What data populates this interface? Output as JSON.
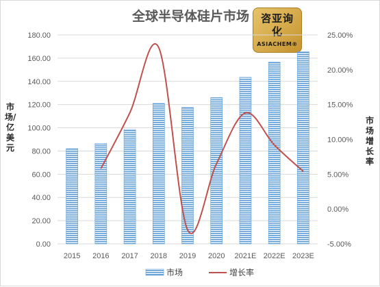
{
  "chart_data": {
    "type": "bar",
    "title": "全球半导体硅片市场",
    "categories": [
      "2015",
      "2016",
      "2017",
      "2018",
      "2019",
      "2020",
      "2021E",
      "2022E",
      "2023E"
    ],
    "series": [
      {
        "name": "市场",
        "type": "bar",
        "axis": "left",
        "color": "#5b9bd5",
        "values": [
          82.0,
          86.5,
          98.5,
          121.0,
          117.5,
          126.0,
          143.5,
          156.5,
          165.5
        ]
      },
      {
        "name": "增长率",
        "type": "line",
        "axis": "right",
        "color": "#c0504d",
        "values": [
          null,
          5.8,
          13.8,
          23.2,
          -3.0,
          6.5,
          13.8,
          9.2,
          5.4
        ]
      }
    ],
    "ylabel": "市场/亿美元",
    "y2label": "市场增长率",
    "ylim": [
      0,
      180
    ],
    "y2lim": [
      -5,
      25
    ],
    "yticks": [
      "0.00",
      "20.00",
      "40.00",
      "60.00",
      "80.00",
      "100.00",
      "120.00",
      "140.00",
      "160.00",
      "180.00"
    ],
    "y2ticks": [
      "-5.00%",
      "0.00%",
      "5.00%",
      "10.00%",
      "15.00%",
      "20.00%",
      "25.00%"
    ],
    "legend": "bottom",
    "grid": true
  },
  "logo": {
    "text_cn": "咨亚询化",
    "text_en": "ASIACHEM®"
  }
}
